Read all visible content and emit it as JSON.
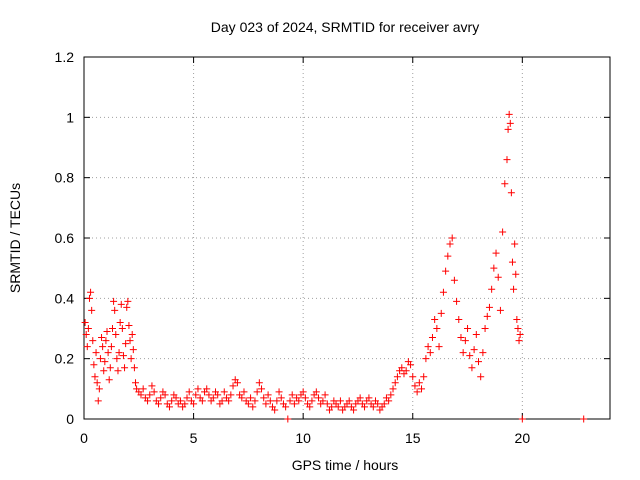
{
  "chart_data": {
    "type": "scatter",
    "title": "Day 023 of 2024, SRMTID for receiver avry",
    "xlabel": "GPS time / hours",
    "ylabel": "SRMTID / TECUs",
    "xlim": [
      0,
      24
    ],
    "ylim": [
      0,
      1.2
    ],
    "xticks": [
      0,
      5,
      10,
      15,
      20
    ],
    "xtick_labels": [
      "0",
      "5",
      "10",
      "15",
      "20"
    ],
    "yticks": [
      0,
      0.2,
      0.4,
      0.6,
      0.8,
      1.0,
      1.2
    ],
    "ytick_labels": [
      "0",
      "0.2",
      "0.4",
      "0.6",
      "0.8",
      "1",
      "1.2"
    ],
    "grid": true,
    "marker": "+",
    "series": [
      {
        "name": "SRMTID",
        "color": "#ff0000",
        "points": [
          [
            0.05,
            0.32
          ],
          [
            0.1,
            0.28
          ],
          [
            0.15,
            0.24
          ],
          [
            0.2,
            0.3
          ],
          [
            0.25,
            0.4
          ],
          [
            0.3,
            0.42
          ],
          [
            0.35,
            0.36
          ],
          [
            0.4,
            0.26
          ],
          [
            0.45,
            0.18
          ],
          [
            0.5,
            0.14
          ],
          [
            0.55,
            0.22
          ],
          [
            0.6,
            0.12
          ],
          [
            0.65,
            0.06
          ],
          [
            0.7,
            0.1
          ],
          [
            0.75,
            0.2
          ],
          [
            0.8,
            0.27
          ],
          [
            0.85,
            0.24
          ],
          [
            0.9,
            0.16
          ],
          [
            0.95,
            0.19
          ],
          [
            1.0,
            0.26
          ],
          [
            1.05,
            0.29
          ],
          [
            1.1,
            0.22
          ],
          [
            1.15,
            0.13
          ],
          [
            1.2,
            0.17
          ],
          [
            1.25,
            0.24
          ],
          [
            1.3,
            0.3
          ],
          [
            1.35,
            0.39
          ],
          [
            1.4,
            0.36
          ],
          [
            1.45,
            0.28
          ],
          [
            1.5,
            0.2
          ],
          [
            1.55,
            0.16
          ],
          [
            1.6,
            0.22
          ],
          [
            1.65,
            0.32
          ],
          [
            1.7,
            0.38
          ],
          [
            1.75,
            0.3
          ],
          [
            1.8,
            0.21
          ],
          [
            1.85,
            0.17
          ],
          [
            1.9,
            0.25
          ],
          [
            1.95,
            0.37
          ],
          [
            2.0,
            0.39
          ],
          [
            2.05,
            0.31
          ],
          [
            2.1,
            0.26
          ],
          [
            2.15,
            0.2
          ],
          [
            2.2,
            0.28
          ],
          [
            2.25,
            0.23
          ],
          [
            2.3,
            0.17
          ],
          [
            2.35,
            0.12
          ],
          [
            2.4,
            0.1
          ],
          [
            2.5,
            0.09
          ],
          [
            2.6,
            0.08
          ],
          [
            2.7,
            0.1
          ],
          [
            2.8,
            0.07
          ],
          [
            2.9,
            0.06
          ],
          [
            3.0,
            0.08
          ],
          [
            3.1,
            0.11
          ],
          [
            3.2,
            0.09
          ],
          [
            3.3,
            0.06
          ],
          [
            3.4,
            0.05
          ],
          [
            3.5,
            0.07
          ],
          [
            3.6,
            0.09
          ],
          [
            3.7,
            0.08
          ],
          [
            3.8,
            0.05
          ],
          [
            3.9,
            0.04
          ],
          [
            4.0,
            0.06
          ],
          [
            4.1,
            0.08
          ],
          [
            4.2,
            0.07
          ],
          [
            4.3,
            0.05
          ],
          [
            4.4,
            0.06
          ],
          [
            4.5,
            0.04
          ],
          [
            4.6,
            0.05
          ],
          [
            4.7,
            0.07
          ],
          [
            4.8,
            0.09
          ],
          [
            4.9,
            0.06
          ],
          [
            5.0,
            0.05
          ],
          [
            5.1,
            0.08
          ],
          [
            5.2,
            0.1
          ],
          [
            5.3,
            0.07
          ],
          [
            5.4,
            0.06
          ],
          [
            5.5,
            0.09
          ],
          [
            5.6,
            0.1
          ],
          [
            5.7,
            0.08
          ],
          [
            5.8,
            0.06
          ],
          [
            5.9,
            0.07
          ],
          [
            6.0,
            0.09
          ],
          [
            6.1,
            0.08
          ],
          [
            6.2,
            0.05
          ],
          [
            6.3,
            0.06
          ],
          [
            6.4,
            0.09
          ],
          [
            6.5,
            0.07
          ],
          [
            6.6,
            0.06
          ],
          [
            6.7,
            0.08
          ],
          [
            6.8,
            0.11
          ],
          [
            6.9,
            0.13
          ],
          [
            7.0,
            0.12
          ],
          [
            7.1,
            0.08
          ],
          [
            7.2,
            0.07
          ],
          [
            7.3,
            0.09
          ],
          [
            7.4,
            0.06
          ],
          [
            7.5,
            0.05
          ],
          [
            7.6,
            0.07
          ],
          [
            7.7,
            0.04
          ],
          [
            7.8,
            0.06
          ],
          [
            7.9,
            0.09
          ],
          [
            8.0,
            0.12
          ],
          [
            8.1,
            0.1
          ],
          [
            8.2,
            0.07
          ],
          [
            8.3,
            0.05
          ],
          [
            8.4,
            0.08
          ],
          [
            8.5,
            0.06
          ],
          [
            8.6,
            0.04
          ],
          [
            8.7,
            0.03
          ],
          [
            8.8,
            0.06
          ],
          [
            8.9,
            0.09
          ],
          [
            9.0,
            0.07
          ],
          [
            9.1,
            0.05
          ],
          [
            9.2,
            0.04
          ],
          [
            9.3,
            0.0
          ],
          [
            9.4,
            0.06
          ],
          [
            9.5,
            0.08
          ],
          [
            9.6,
            0.05
          ],
          [
            9.7,
            0.07
          ],
          [
            9.8,
            0.06
          ],
          [
            9.9,
            0.08
          ],
          [
            10.0,
            0.09
          ],
          [
            10.1,
            0.07
          ],
          [
            10.2,
            0.05
          ],
          [
            10.3,
            0.04
          ],
          [
            10.4,
            0.06
          ],
          [
            10.5,
            0.08
          ],
          [
            10.6,
            0.09
          ],
          [
            10.7,
            0.07
          ],
          [
            10.8,
            0.05
          ],
          [
            10.9,
            0.06
          ],
          [
            11.0,
            0.08
          ],
          [
            11.1,
            0.05
          ],
          [
            11.2,
            0.03
          ],
          [
            11.3,
            0.04
          ],
          [
            11.4,
            0.06
          ],
          [
            11.5,
            0.05
          ],
          [
            11.6,
            0.04
          ],
          [
            11.7,
            0.06
          ],
          [
            11.8,
            0.03
          ],
          [
            11.9,
            0.04
          ],
          [
            12.0,
            0.05
          ],
          [
            12.1,
            0.06
          ],
          [
            12.2,
            0.04
          ],
          [
            12.3,
            0.03
          ],
          [
            12.4,
            0.05
          ],
          [
            12.5,
            0.06
          ],
          [
            12.6,
            0.07
          ],
          [
            12.7,
            0.05
          ],
          [
            12.8,
            0.04
          ],
          [
            12.9,
            0.06
          ],
          [
            13.0,
            0.07
          ],
          [
            13.1,
            0.05
          ],
          [
            13.2,
            0.04
          ],
          [
            13.3,
            0.06
          ],
          [
            13.4,
            0.05
          ],
          [
            13.5,
            0.03
          ],
          [
            13.6,
            0.04
          ],
          [
            13.7,
            0.05
          ],
          [
            13.8,
            0.07
          ],
          [
            13.9,
            0.06
          ],
          [
            14.0,
            0.08
          ],
          [
            14.1,
            0.1
          ],
          [
            14.2,
            0.12
          ],
          [
            14.3,
            0.14
          ],
          [
            14.4,
            0.16
          ],
          [
            14.5,
            0.17
          ],
          [
            14.6,
            0.15
          ],
          [
            14.7,
            0.16
          ],
          [
            14.8,
            0.19
          ],
          [
            14.9,
            0.18
          ],
          [
            15.0,
            0.14
          ],
          [
            15.1,
            0.11
          ],
          [
            15.2,
            0.09
          ],
          [
            15.3,
            0.12
          ],
          [
            15.4,
            0.1
          ],
          [
            15.5,
            0.14
          ],
          [
            15.6,
            0.2
          ],
          [
            15.7,
            0.24
          ],
          [
            15.8,
            0.22
          ],
          [
            15.9,
            0.27
          ],
          [
            16.0,
            0.33
          ],
          [
            16.1,
            0.3
          ],
          [
            16.2,
            0.24
          ],
          [
            16.3,
            0.35
          ],
          [
            16.4,
            0.42
          ],
          [
            16.5,
            0.49
          ],
          [
            16.6,
            0.54
          ],
          [
            16.7,
            0.58
          ],
          [
            16.8,
            0.6
          ],
          [
            16.9,
            0.46
          ],
          [
            17.0,
            0.39
          ],
          [
            17.1,
            0.33
          ],
          [
            17.2,
            0.27
          ],
          [
            17.3,
            0.22
          ],
          [
            17.4,
            0.26
          ],
          [
            17.5,
            0.3
          ],
          [
            17.6,
            0.21
          ],
          [
            17.7,
            0.17
          ],
          [
            17.8,
            0.23
          ],
          [
            17.9,
            0.28
          ],
          [
            18.0,
            0.19
          ],
          [
            18.1,
            0.14
          ],
          [
            18.2,
            0.22
          ],
          [
            18.3,
            0.3
          ],
          [
            18.4,
            0.34
          ],
          [
            18.5,
            0.37
          ],
          [
            18.6,
            0.43
          ],
          [
            18.7,
            0.5
          ],
          [
            18.8,
            0.55
          ],
          [
            18.9,
            0.47
          ],
          [
            19.0,
            0.36
          ],
          [
            19.1,
            0.62
          ],
          [
            19.2,
            0.78
          ],
          [
            19.3,
            0.86
          ],
          [
            19.35,
            0.96
          ],
          [
            19.4,
            1.01
          ],
          [
            19.45,
            0.98
          ],
          [
            19.5,
            0.75
          ],
          [
            19.55,
            0.52
          ],
          [
            19.6,
            0.43
          ],
          [
            19.65,
            0.58
          ],
          [
            19.7,
            0.48
          ],
          [
            19.75,
            0.33
          ],
          [
            19.8,
            0.3
          ],
          [
            19.85,
            0.26
          ],
          [
            19.9,
            0.28
          ],
          [
            20.0,
            0.0
          ],
          [
            22.8,
            0.0
          ]
        ]
      }
    ]
  }
}
